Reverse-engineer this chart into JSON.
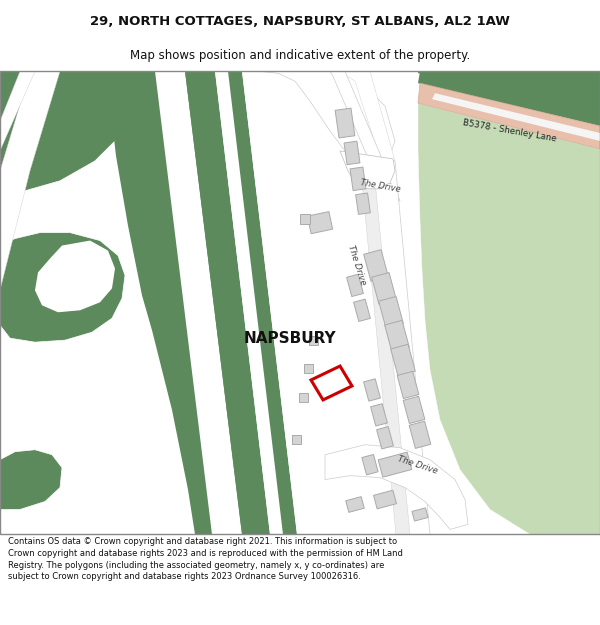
{
  "title_line1": "29, NORTH COTTAGES, NAPSBURY, ST ALBANS, AL2 1AW",
  "title_line2": "Map shows position and indicative extent of the property.",
  "footer_text": "Contains OS data © Crown copyright and database right 2021. This information is subject to Crown copyright and database rights 2023 and is reproduced with the permission of HM Land Registry. The polygons (including the associated geometry, namely x, y co-ordinates) are subject to Crown copyright and database rights 2023 Ordnance Survey 100026316.",
  "napsbury_label": "NAPSBURY",
  "road_label_drive_mid": "The Drive",
  "road_label_drive_lower": "The Drive",
  "road_label_drive_top": "The Drive",
  "road_label_b5378": "B5378 - Shenley Lane",
  "bg_color": "#ffffff",
  "map_bg": "#ffffff",
  "green_dark": "#5c8a5c",
  "green_light": "#c5dbb5",
  "road_peach": "#e8bfaa",
  "building_fill": "#d4d4d4",
  "building_edge": "#aaaaaa",
  "highlight_color": "#cc0000",
  "title_fontsize": 9.5,
  "subtitle_fontsize": 8.5,
  "footer_fontsize": 6.0,
  "napsbury_fontsize": 11
}
